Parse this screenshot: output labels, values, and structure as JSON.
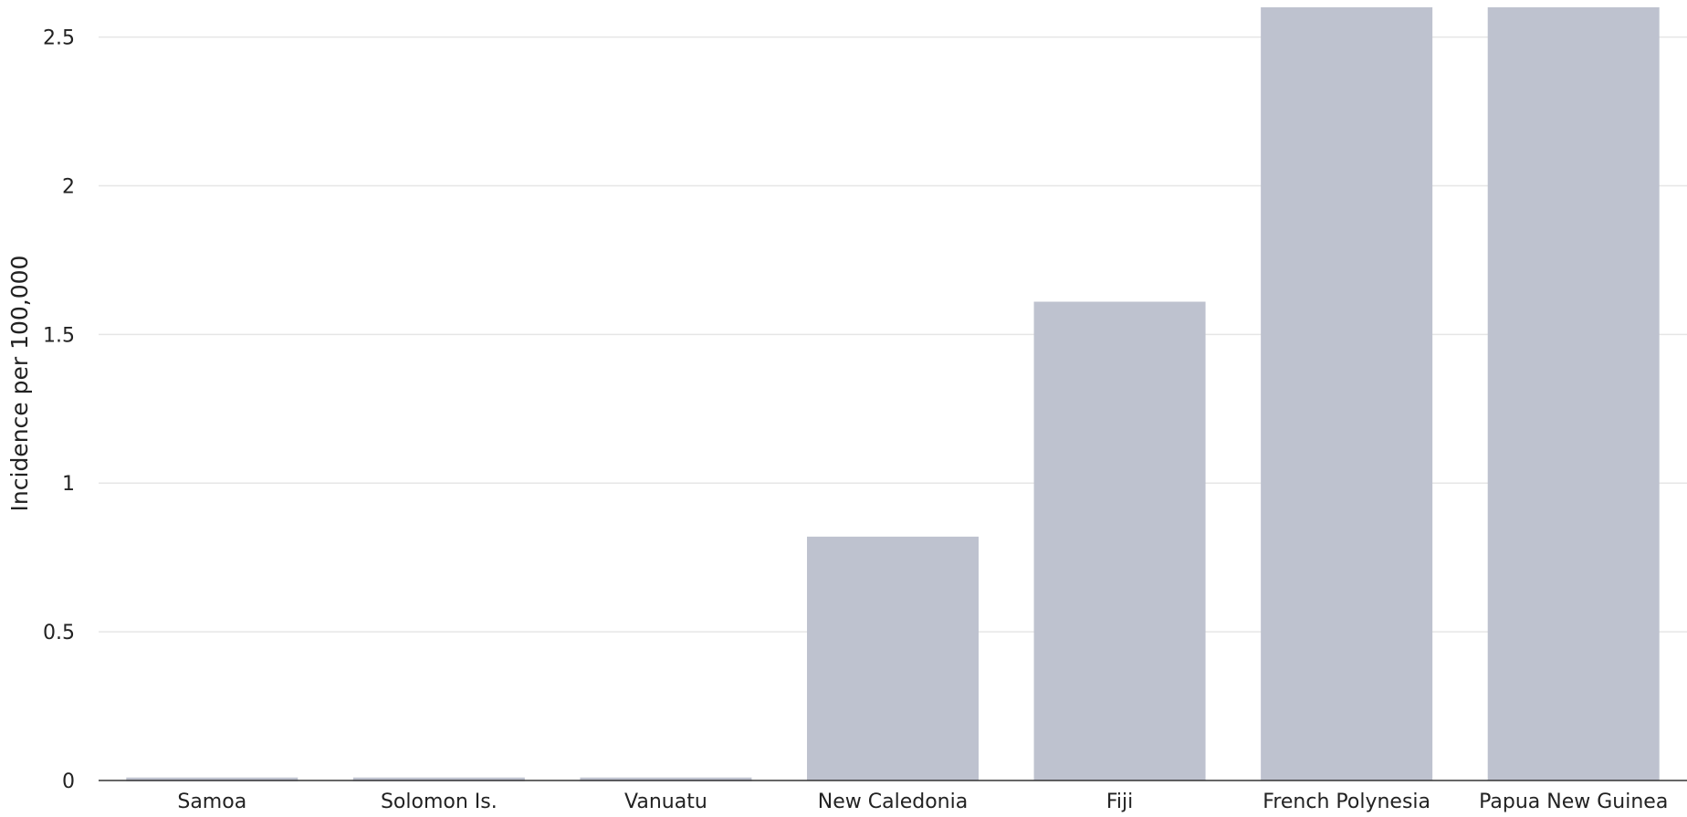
{
  "chart_data": {
    "type": "bar",
    "categories": [
      "Samoa",
      "Solomon Is.",
      "Vanuatu",
      "New Caledonia",
      "Fiji",
      "French Polynesia",
      "Papua New Guinea"
    ],
    "values": [
      0.01,
      0.01,
      0.01,
      0.82,
      1.61,
      2.6,
      2.6
    ],
    "ylabel": "Incidence per 100,000",
    "ylim": [
      0,
      2.6
    ],
    "yticks": [
      0,
      0.5,
      1,
      1.5,
      2,
      2.5
    ],
    "ytick_labels": [
      "0",
      "0.5",
      "1",
      "1.5",
      "2",
      "2.5"
    ],
    "grid": true,
    "bar_color": "#bec2cf"
  }
}
